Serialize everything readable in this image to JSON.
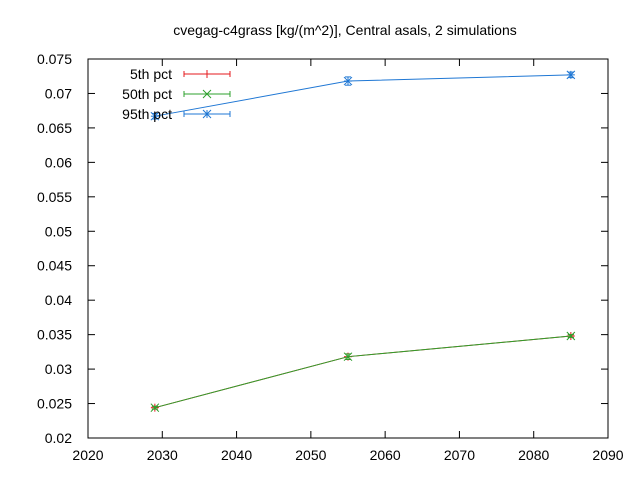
{
  "chart_data": {
    "type": "line",
    "title": "cvegag-c4grass [kg/(m^2)], Central asals, 2 simulations",
    "xlabel": "",
    "ylabel": "",
    "xlim": [
      2020,
      2090
    ],
    "ylim": [
      0.02,
      0.075
    ],
    "x_ticks": [
      "2020",
      "2030",
      "2040",
      "2050",
      "2060",
      "2070",
      "2080",
      "2090"
    ],
    "y_ticks": [
      "0.02",
      "0.025",
      "0.03",
      "0.035",
      "0.04",
      "0.045",
      "0.05",
      "0.055",
      "0.06",
      "0.065",
      "0.07",
      "0.075"
    ],
    "grid": false,
    "legend_position": "top-left",
    "x": [
      2029,
      2055,
      2085
    ],
    "series": [
      {
        "name": "5th pct",
        "color": "#e41a1c",
        "marker": "plus",
        "values": [
          0.0244,
          0.0318,
          0.0348
        ],
        "errors": [
          0.0002,
          0.0004,
          0.0002
        ]
      },
      {
        "name": "50th pct",
        "color": "#2ca02c",
        "marker": "x",
        "values": [
          0.0244,
          0.0318,
          0.0348
        ],
        "errors": [
          0.0002,
          0.0004,
          0.0002
        ]
      },
      {
        "name": "95th pct",
        "color": "#1f77d4",
        "marker": "star",
        "values": [
          0.0667,
          0.0718,
          0.0727
        ],
        "errors": [
          0.0004,
          0.0006,
          0.0004
        ]
      }
    ]
  }
}
